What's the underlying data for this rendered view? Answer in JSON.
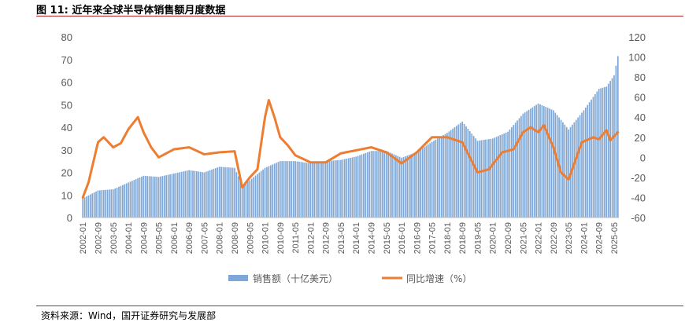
{
  "title": "图 11:  近年来全球半导体销售额月度数据",
  "source": "资料来源：Wind，国开证券研究与发展部",
  "chart_data": {
    "type": "bar+line",
    "title": "图 11:  近年来全球半导体销售额月度数据",
    "left_axis": {
      "ylim": [
        0,
        80
      ],
      "ticks": [
        "0",
        "10",
        "20",
        "30",
        "40",
        "50",
        "60",
        "70",
        "80"
      ]
    },
    "right_axis": {
      "ylim": [
        -60,
        120
      ],
      "ticks": [
        "-60",
        "-40",
        "-20",
        "0",
        "20",
        "40",
        "60",
        "80",
        "100",
        "120"
      ]
    },
    "x_tick_labels": [
      "2002-01",
      "2002-09",
      "2003-05",
      "2004-01",
      "2004-09",
      "2005-05",
      "2006-01",
      "2006-09",
      "2007-05",
      "2008-01",
      "2008-09",
      "2009-05",
      "2010-01",
      "2010-09",
      "2011-05",
      "2012-01",
      "2012-09",
      "2013-05",
      "2014-01",
      "2014-09",
      "2015-05",
      "2016-01",
      "2016-09",
      "2017-05",
      "2018-01",
      "2018-09",
      "2019-05",
      "2020-01",
      "2020-09",
      "2021-05",
      "2022-01",
      "2022-09",
      "2023-05",
      "2024-01",
      "2024-09",
      "2025-05"
    ],
    "legend_position": "bottom",
    "grid": false,
    "series": [
      {
        "name": "销售额（十亿美元）",
        "type": "bar",
        "axis": "left",
        "color": "#7ea6d6",
        "anchors": [
          [
            "2002-01",
            8.5
          ],
          [
            "2002-09",
            12
          ],
          [
            "2003-05",
            12.5
          ],
          [
            "2004-01",
            15.5
          ],
          [
            "2004-09",
            18.5
          ],
          [
            "2005-05",
            18
          ],
          [
            "2006-01",
            19.5
          ],
          [
            "2006-09",
            21
          ],
          [
            "2007-05",
            20
          ],
          [
            "2008-01",
            22.5
          ],
          [
            "2008-09",
            22
          ],
          [
            "2009-01",
            14.5
          ],
          [
            "2009-05",
            16.5
          ],
          [
            "2010-01",
            22
          ],
          [
            "2010-09",
            25
          ],
          [
            "2011-05",
            25
          ],
          [
            "2012-01",
            24
          ],
          [
            "2012-09",
            25
          ],
          [
            "2013-05",
            25.5
          ],
          [
            "2014-01",
            27
          ],
          [
            "2014-09",
            29.5
          ],
          [
            "2015-05",
            29.5
          ],
          [
            "2016-01",
            26.5
          ],
          [
            "2016-09",
            29
          ],
          [
            "2017-05",
            33.5
          ],
          [
            "2018-01",
            37.5
          ],
          [
            "2018-09",
            42.5
          ],
          [
            "2019-05",
            34
          ],
          [
            "2020-01",
            35
          ],
          [
            "2020-09",
            38
          ],
          [
            "2021-05",
            46
          ],
          [
            "2022-01",
            50.5
          ],
          [
            "2022-09",
            47.5
          ],
          [
            "2023-05",
            39
          ],
          [
            "2024-01",
            47.5
          ],
          [
            "2024-09",
            57
          ],
          [
            "2025-01",
            58
          ],
          [
            "2025-05",
            63
          ],
          [
            "2025-07",
            71.5
          ]
        ]
      },
      {
        "name": "同比增速（%）",
        "type": "line",
        "axis": "right",
        "color": "#ed7d31",
        "anchors": [
          [
            "2002-01",
            -40
          ],
          [
            "2002-04",
            -25
          ],
          [
            "2002-09",
            15
          ],
          [
            "2002-12",
            20
          ],
          [
            "2003-05",
            10
          ],
          [
            "2003-09",
            14
          ],
          [
            "2004-01",
            28
          ],
          [
            "2004-06",
            40
          ],
          [
            "2004-09",
            25
          ],
          [
            "2005-01",
            10
          ],
          [
            "2005-05",
            0
          ],
          [
            "2006-01",
            8
          ],
          [
            "2006-09",
            10
          ],
          [
            "2007-05",
            3
          ],
          [
            "2008-01",
            5
          ],
          [
            "2008-09",
            6
          ],
          [
            "2009-01",
            -30
          ],
          [
            "2009-05",
            -20
          ],
          [
            "2009-09",
            -12
          ],
          [
            "2010-01",
            40
          ],
          [
            "2010-03",
            57
          ],
          [
            "2010-06",
            40
          ],
          [
            "2010-09",
            20
          ],
          [
            "2011-01",
            12
          ],
          [
            "2011-05",
            2
          ],
          [
            "2012-01",
            -5
          ],
          [
            "2012-09",
            -5
          ],
          [
            "2013-05",
            4
          ],
          [
            "2014-01",
            7
          ],
          [
            "2014-09",
            10
          ],
          [
            "2015-05",
            5
          ],
          [
            "2016-01",
            -6
          ],
          [
            "2016-09",
            5
          ],
          [
            "2017-05",
            20
          ],
          [
            "2018-01",
            20
          ],
          [
            "2018-09",
            15
          ],
          [
            "2019-05",
            -15
          ],
          [
            "2019-11",
            -12
          ],
          [
            "2020-06",
            5
          ],
          [
            "2020-12",
            8
          ],
          [
            "2021-05",
            25
          ],
          [
            "2021-09",
            30
          ],
          [
            "2022-01",
            25
          ],
          [
            "2022-04",
            32
          ],
          [
            "2022-09",
            10
          ],
          [
            "2023-01",
            -15
          ],
          [
            "2023-05",
            -22
          ],
          [
            "2023-12",
            15
          ],
          [
            "2024-06",
            20
          ],
          [
            "2024-09",
            18
          ],
          [
            "2025-01",
            27
          ],
          [
            "2025-03",
            17
          ],
          [
            "2025-07",
            25
          ]
        ]
      }
    ]
  }
}
